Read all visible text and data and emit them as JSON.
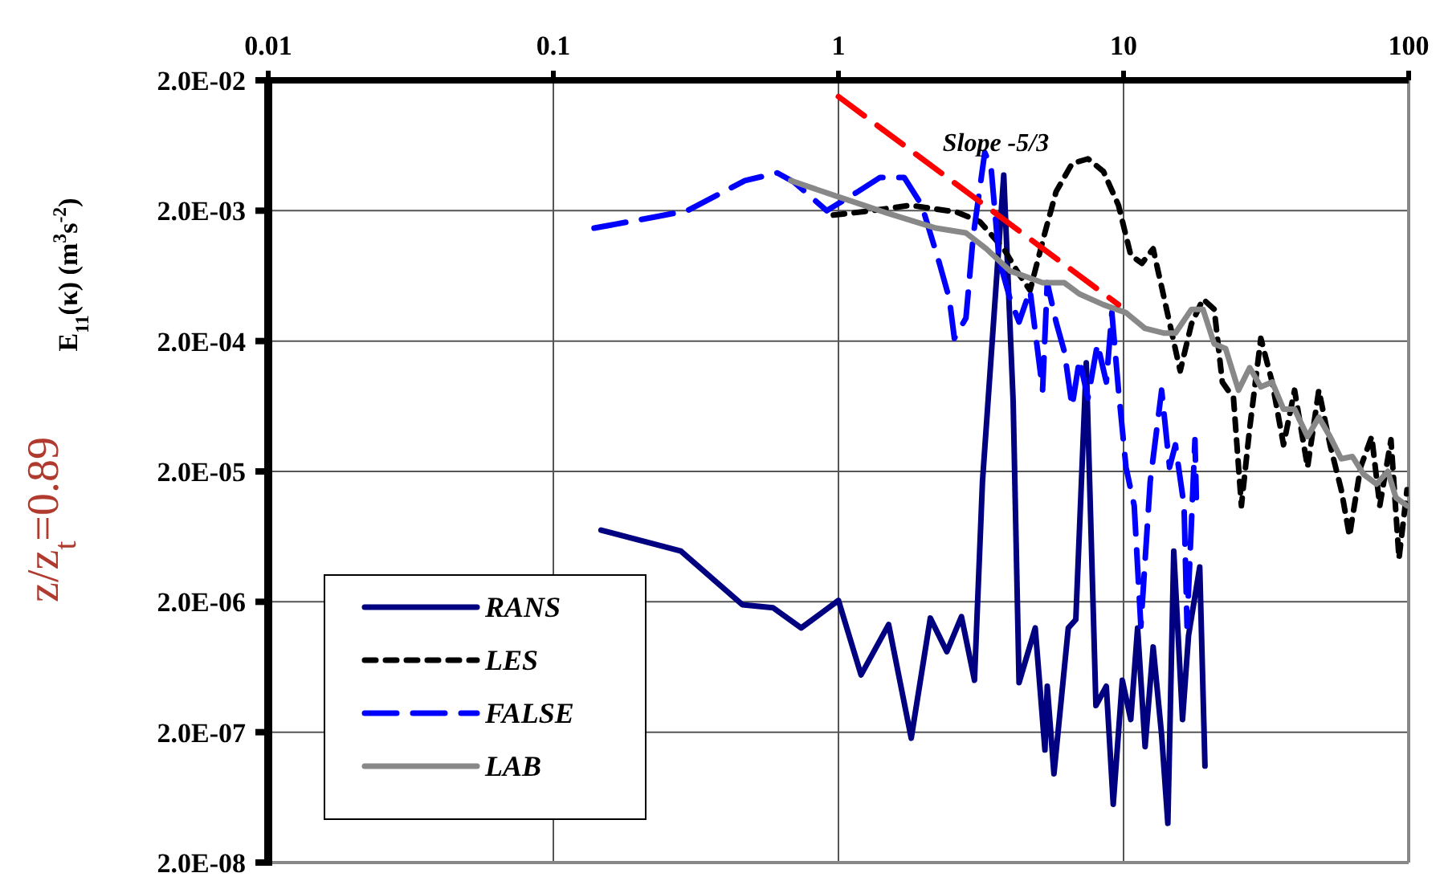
{
  "chart_data": {
    "type": "line",
    "ylabel": "E$_{11}$(κ)  (m$^{3}$s$^{-2}$)",
    "log": "xy",
    "grid": true,
    "legend": "bottom left",
    "marker": "none",
    "xlim": [
      0.01,
      100
    ],
    "xticks": [
      0.01,
      0.1,
      1,
      10,
      100
    ],
    "ylim": [
      2e-08,
      0.02
    ],
    "yticks": [
      {
        "value": 2e-08,
        "label": "2.0E-08"
      },
      {
        "value": 2e-07,
        "label": "2.0E-07"
      },
      {
        "value": 2e-06,
        "label": "2.0E-06"
      },
      {
        "value": 2e-05,
        "label": "2.0E-05"
      },
      {
        "value": 0.0002,
        "label": "2.0E-04"
      },
      {
        "value": 0.002,
        "label": "2.0E-03"
      },
      {
        "value": 0.02,
        "label": "2.0E-02"
      }
    ],
    "annotations": [
      "Slope -5/3",
      "z/z$_{t}$=0.89"
    ],
    "series": [
      {
        "name": "RANS",
        "color": "#000080",
        "line_style": "solid",
        "x": [
          0.147,
          0.28,
          0.46,
          0.59,
          0.74,
          1,
          1.2,
          1.5,
          1.8,
          2.1,
          2.4,
          2.7,
          3.0,
          3.2,
          3.8,
          4.1,
          4.3,
          4.9,
          5.3,
          5.4,
          5.7,
          6.4,
          6.8,
          7.4,
          8.0,
          8.7,
          9.2,
          9.9,
          10.6,
          11.2,
          11.9,
          12.7,
          13.6,
          14.3,
          15.0,
          16.1,
          16.9,
          18.5,
          19.3
        ],
        "values": [
          7.1e-06,
          4.9e-06,
          1.9e-06,
          1.8e-06,
          1.26e-06,
          2.05e-06,
          5.5e-07,
          1.34e-06,
          1.8e-07,
          1.5e-06,
          8.3e-07,
          1.54e-06,
          5e-07,
          1.67e-05,
          0.00375,
          6.9e-05,
          4.8e-07,
          1.26e-06,
          1.46e-07,
          4.5e-07,
          9.6e-08,
          1.26e-06,
          1.46e-06,
          0.000136,
          3.2e-07,
          4.5e-07,
          5.6e-08,
          5e-07,
          2.5e-07,
          1.26e-06,
          1.55e-07,
          9e-07,
          1.9e-07,
          4e-08,
          4.9e-06,
          2.5e-07,
          1.1e-06,
          3.7e-06,
          1.1e-07
        ]
      },
      {
        "name": "LES",
        "color": "#000000",
        "line_style": "dotted",
        "x": [
          0.96,
          1.31,
          1.79,
          2.6,
          3.13,
          3.8,
          4.3,
          4.7,
          5.3,
          5.8,
          6.6,
          7.5,
          8.5,
          9.6,
          10.6,
          11.6,
          12.7,
          13.9,
          15.8,
          17.3,
          19.0,
          20.8,
          22.2,
          24.3,
          25.9,
          27.7,
          30.3,
          33.2,
          36.4,
          39.8,
          44.2,
          48.4,
          53,
          58,
          62,
          67.8,
          74.2,
          79.2,
          86.7,
          92.5,
          98.7
        ],
        "values": [
          0.00185,
          0.002,
          0.0022,
          0.00195,
          0.00165,
          0.00102,
          0.00065,
          0.00049,
          0.00136,
          0.0028,
          0.0046,
          0.005,
          0.004,
          0.0022,
          0.00091,
          0.00079,
          0.00102,
          0.00042,
          0.000118,
          0.00027,
          0.00042,
          0.00035,
          9.7e-05,
          7.3e-05,
          1.09e-05,
          4.3e-05,
          0.00021,
          9.7e-05,
          3.2e-05,
          8.4e-05,
          2.15e-05,
          8.4e-05,
          3.2e-05,
          1.45e-05,
          6.4e-06,
          2.15e-05,
          3.7e-05,
          1.09e-05,
          3.5e-05,
          4.3e-06,
          1.45e-05
        ]
      },
      {
        "name": "FALSE",
        "color": "#0000ff",
        "line_style": "dashed",
        "x": [
          0.139,
          0.23,
          0.295,
          0.47,
          0.61,
          0.7,
          0.91,
          1.17,
          1.4,
          1.7,
          1.96,
          2.26,
          2.45,
          2.55,
          2.8,
          2.97,
          3.26,
          3.43,
          3.66,
          4.0,
          4.3,
          4.7,
          5.2,
          5.4,
          5.8,
          6.2,
          6.6,
          7.0,
          7.5,
          8.1,
          8.7,
          9.1,
          9.6,
          10.2,
          10.9,
          11.5,
          12.4,
          13.6,
          14.5,
          15.2,
          16.3,
          16.7,
          17.8,
          18.0
        ],
        "values": [
          0.00147,
          0.0018,
          0.002,
          0.0034,
          0.0039,
          0.0033,
          0.002,
          0.0028,
          0.0036,
          0.0036,
          0.0022,
          0.00079,
          0.00042,
          0.00021,
          0.0003,
          0.00128,
          0.0056,
          0.0043,
          0.00084,
          0.00042,
          0.00028,
          0.00049,
          8.4e-05,
          0.00056,
          0.00028,
          0.000166,
          6.3e-05,
          0.000144,
          7.3e-05,
          0.00019,
          9.7e-05,
          0.00033,
          8.4e-05,
          2.15e-05,
          1.09e-05,
          1.3e-06,
          1.67e-05,
          8.4e-05,
          2.15e-05,
          3.2e-05,
          1.09e-05,
          1.3e-06,
          3.5e-05,
          1.26e-05
        ]
      },
      {
        "name": "LAB",
        "color": "#888888",
        "line_style": "solid",
        "x": [
          0.68,
          1.03,
          1.5,
          2.2,
          2.8,
          3.3,
          4.0,
          5.2,
          6.2,
          7.0,
          8.5,
          10.2,
          11.9,
          13.9,
          15.2,
          17.3,
          19.0,
          20.8,
          22.8,
          25.3,
          27.7,
          30.3,
          33.2,
          36.4,
          39.8,
          44.2,
          48.4,
          53,
          58,
          63.5,
          69.5,
          77.1,
          84.5,
          90.2,
          98.7
        ],
        "values": [
          0.0034,
          0.0025,
          0.0019,
          0.00147,
          0.00135,
          0.00102,
          0.00069,
          0.00056,
          0.00056,
          0.00046,
          0.00038,
          0.00033,
          0.00025,
          0.00023,
          0.00023,
          0.00035,
          0.00035,
          0.00019,
          0.000175,
          8.4e-05,
          0.000125,
          8.9e-05,
          9.7e-05,
          6e-05,
          6e-05,
          3.7e-05,
          5.2e-05,
          3.7e-05,
          2.5e-05,
          2.6e-05,
          1.9e-05,
          1.6e-05,
          2e-05,
          1.26e-05,
          1.09e-05
        ]
      },
      {
        "color": "#ff0000",
        "line_style": "dashed",
        "x": [
          1.0,
          9.6
        ],
        "values": [
          0.015,
          0.00038
        ]
      }
    ]
  }
}
